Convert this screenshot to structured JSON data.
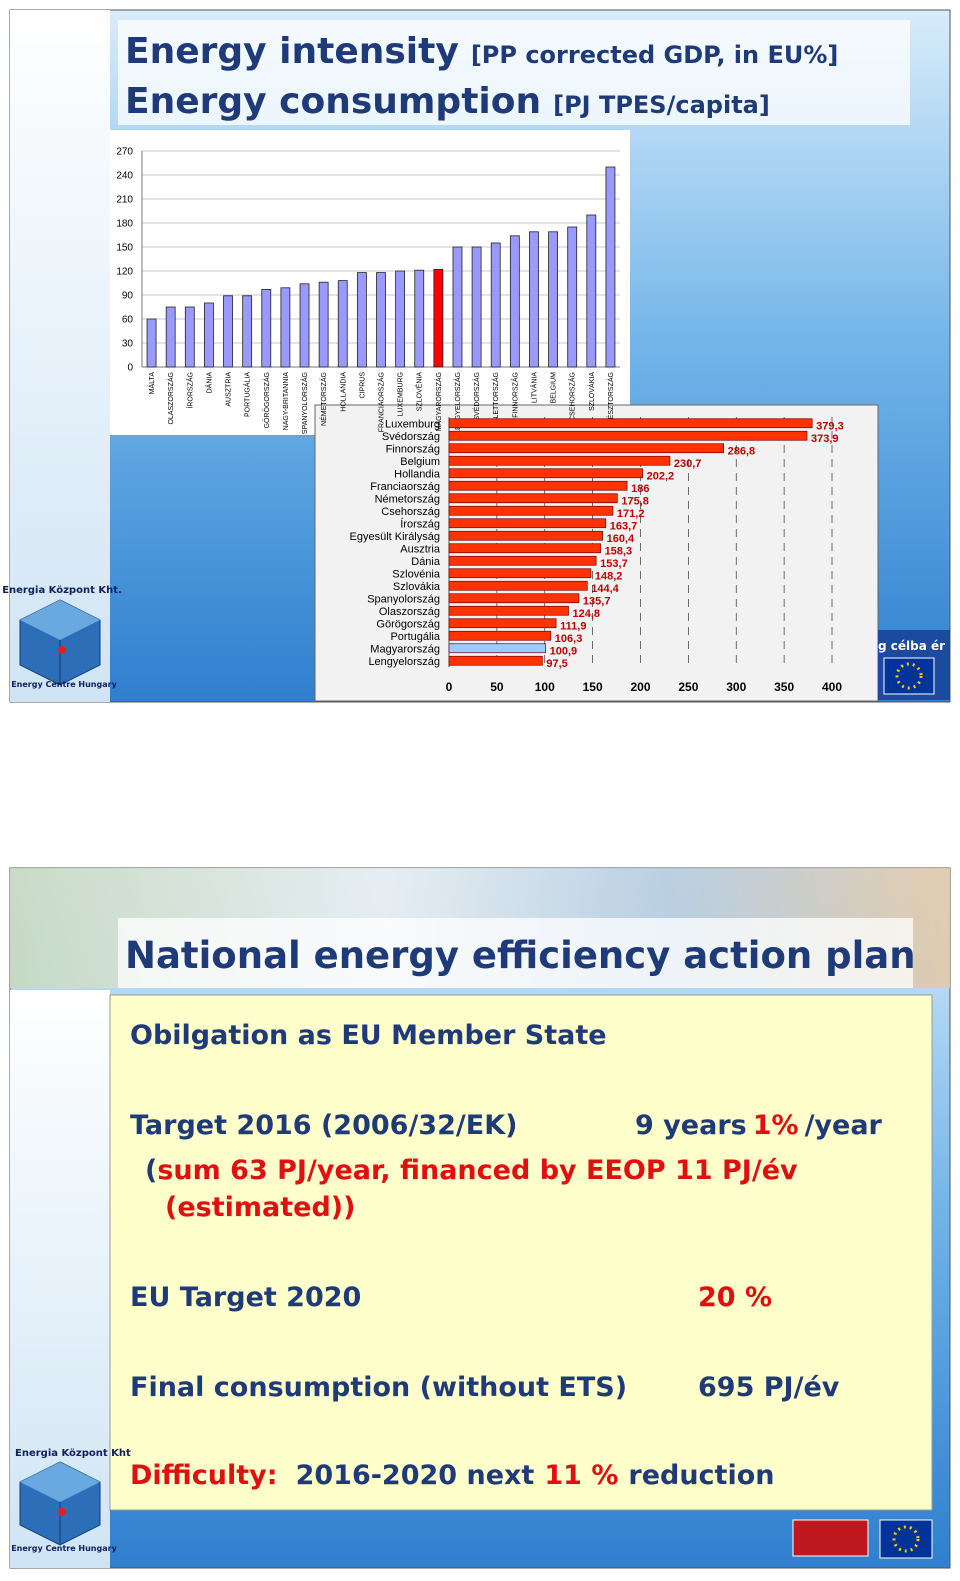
{
  "slide1": {
    "title_main_1": "Energy intensity",
    "title_sub_1": "[PP corrected GDP, in EU%]",
    "title_main_2": "Energy consumption",
    "title_sub_2": "[PJ TPES/capita]",
    "sidebar_org": "Energia Központ Kht.",
    "sidebar_org_en": "Energy Centre Hungary",
    "slogan": "g célba ér"
  },
  "chart_data": [
    {
      "type": "bar",
      "categories": [
        "MÁLTA",
        "OLASZORSZÁG",
        "ÍRORSZÁG",
        "DÁNIA",
        "AUSZTRIA",
        "PORTUGÁLIA",
        "GÖRÖGORSZÁG",
        "NAGY-BRITANNIA",
        "SPANYOLORSZÁG",
        "NÉMETORSZÁG",
        "HOLLANDIA",
        "CIPRUS",
        "FRANCIAORSZÁG",
        "LUXEMBURG",
        "SZLOVÉNIA",
        "MAGYARORSZÁG",
        "LENGYELORSZÁG",
        "SVÉDORSZÁG",
        "LETTORSZÁG",
        "FINNORSZÁG",
        "LITVÁNIA",
        "BELGIUM",
        "CSEHORSZÁG",
        "SZLOVÁKIA",
        "ÉSZTORSZÁG"
      ],
      "values": [
        60,
        75,
        75,
        80,
        89,
        89,
        97,
        99,
        104,
        106,
        108,
        118,
        118,
        120,
        121,
        122,
        150,
        150,
        155,
        164,
        169,
        169,
        175,
        190,
        250
      ],
      "colors": [
        "#9999ff",
        "#9999ff",
        "#9999ff",
        "#9999ff",
        "#9999ff",
        "#9999ff",
        "#9999ff",
        "#9999ff",
        "#9999ff",
        "#9999ff",
        "#9999ff",
        "#9999ff",
        "#9999ff",
        "#9999ff",
        "#9999ff",
        "#ff0000",
        "#9999ff",
        "#9999ff",
        "#9999ff",
        "#9999ff",
        "#9999ff",
        "#9999ff",
        "#9999ff",
        "#9999ff",
        "#9999ff"
      ],
      "ylim": [
        0,
        270
      ],
      "yticks": [
        0,
        30,
        60,
        90,
        120,
        150,
        180,
        210,
        240,
        270
      ],
      "grid": true
    },
    {
      "type": "hbar",
      "categories": [
        "Luxemburg",
        "Svédország",
        "Finnország",
        "Belgium",
        "Hollandia",
        "Franciaország",
        "Németország",
        "Csehország",
        "Írország",
        "Egyesült Királyság",
        "Ausztria",
        "Dánia",
        "Szlovénia",
        "Szlovákia",
        "Spanyolország",
        "Olaszország",
        "Görögország",
        "Portugália",
        "Magyarország",
        "Lengyelország"
      ],
      "values": [
        379.3,
        373.9,
        286.8,
        230.7,
        202.2,
        186,
        175.8,
        171.2,
        163.7,
        160.4,
        158.3,
        153.7,
        148.2,
        144.4,
        135.7,
        124.8,
        111.9,
        106.3,
        100.9,
        97.5
      ],
      "value_labels": [
        "379,3",
        "373,9",
        "286,8",
        "230,7",
        "202,2",
        "186",
        "175,8",
        "171,2",
        "163,7",
        "160,4",
        "158,3",
        "153,7",
        "148,2",
        "144,4",
        "135,7",
        "124,8",
        "111,9",
        "106,3",
        "100,9",
        "97,5"
      ],
      "colors": [
        "#ff3300",
        "#ff3300",
        "#ff3300",
        "#ff3300",
        "#ff3300",
        "#ff3300",
        "#ff3300",
        "#ff3300",
        "#ff3300",
        "#ff3300",
        "#ff3300",
        "#ff3300",
        "#ff3300",
        "#ff3300",
        "#ff3300",
        "#ff3300",
        "#ff3300",
        "#ff3300",
        "#99ccff",
        "#ff3300"
      ],
      "xlim": [
        0,
        400
      ],
      "xticks": [
        0,
        50,
        100,
        150,
        200,
        250,
        300,
        350,
        400
      ],
      "grid": true
    }
  ],
  "slide2": {
    "title": "National energy efficiency action plan",
    "obligation": "Obilgation as EU Member State",
    "target2016": {
      "label": "Target 2016 (2006/32/EK)",
      "years": "9 years",
      "rate": "1%",
      "per": "/year"
    },
    "sum_open": "(",
    "sum": "sum 63 PJ/year, financed by EEOP 11 PJ/év",
    "estimated": "(estimated))",
    "eu_target": {
      "label": "EU Target 2020",
      "value": "20 %"
    },
    "final": {
      "label": "Final consumption (without ETS)",
      "value": "695 PJ/év"
    },
    "difficulty": {
      "label": "Difficulty:",
      "text1": "2016-2020 next",
      "pct": "11 %",
      "text2": "reduction"
    },
    "sidebar_org": "Energia Központ Kht",
    "sidebar_org_en": "Energy Centre Hungary"
  }
}
